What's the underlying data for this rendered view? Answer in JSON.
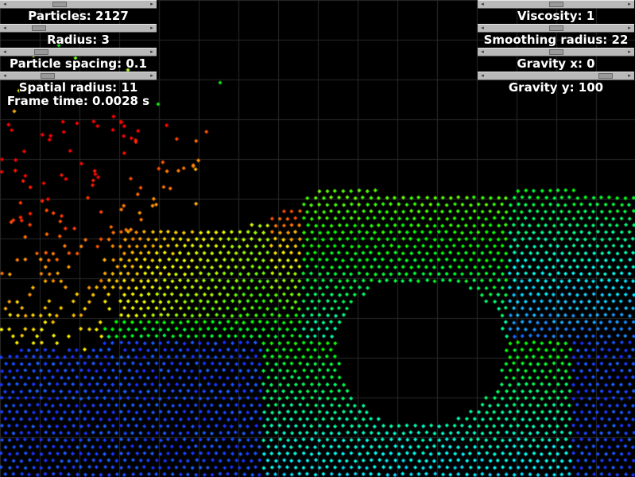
{
  "background": "#000000",
  "grid_color": "#2a2a2a",
  "left_panel": {
    "items": [
      {
        "label": "Particles: 2127",
        "fraction": 0.35
      },
      {
        "label": "Radius: 3",
        "fraction": 0.18
      },
      {
        "label": "Particle spacing: 0.1",
        "fraction": 0.2
      },
      {
        "label": "Spatial radius: 11",
        "fraction": 0.25
      }
    ],
    "frame_time": "Frame time: 0.0028 s"
  },
  "right_panel": {
    "items": [
      {
        "label": "Viscosity: 1",
        "fraction": 0.5
      },
      {
        "label": "Smoothing radius: 22",
        "fraction": 0.5
      },
      {
        "label": "Gravity x: 0",
        "fraction": 0.5
      },
      {
        "label": "Gravity y: 100",
        "fraction": 0.9
      }
    ]
  },
  "icons": {
    "arrow_left": "◂",
    "arrow_right": "▸"
  }
}
